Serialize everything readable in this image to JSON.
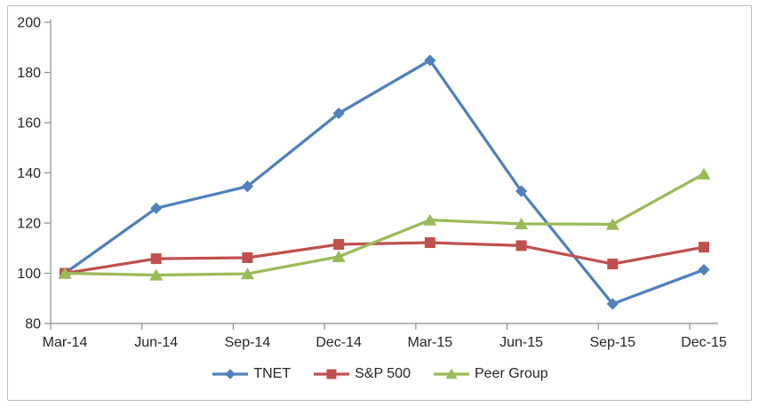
{
  "chart_data": {
    "type": "line",
    "title": "",
    "xlabel": "",
    "ylabel": "",
    "categories": [
      "Mar-14",
      "Jun-14",
      "Sep-14",
      "Dec-14",
      "Mar-15",
      "Jun-15",
      "Sep-15",
      "Dec-15"
    ],
    "series": [
      {
        "name": "TNET",
        "marker": "diamond",
        "color": "#4F81BD",
        "values": [
          100,
          125.9,
          134.6,
          163.7,
          184.8,
          132.7,
          87.8,
          101.4
        ]
      },
      {
        "name": "S&P 500",
        "marker": "square",
        "color": "#C0504D",
        "values": [
          100,
          105.8,
          106.2,
          111.5,
          112.2,
          111.0,
          103.7,
          110.4
        ]
      },
      {
        "name": "Peer Group",
        "marker": "triangle",
        "color": "#9BBB59",
        "values": [
          100,
          99.3,
          99.8,
          106.6,
          121.2,
          119.7,
          119.5,
          139.6
        ]
      }
    ],
    "y_axis": {
      "min": 80,
      "max": 200,
      "step": 20,
      "tick_labels": [
        "80",
        "100",
        "120",
        "140",
        "160",
        "180",
        "200"
      ]
    },
    "ylim": [
      80,
      200
    ],
    "grid": false,
    "legend_position": "bottom",
    "axis_color": "#8e8e8e",
    "text_color": "#262626",
    "frame_color": "#bcbcbc"
  }
}
